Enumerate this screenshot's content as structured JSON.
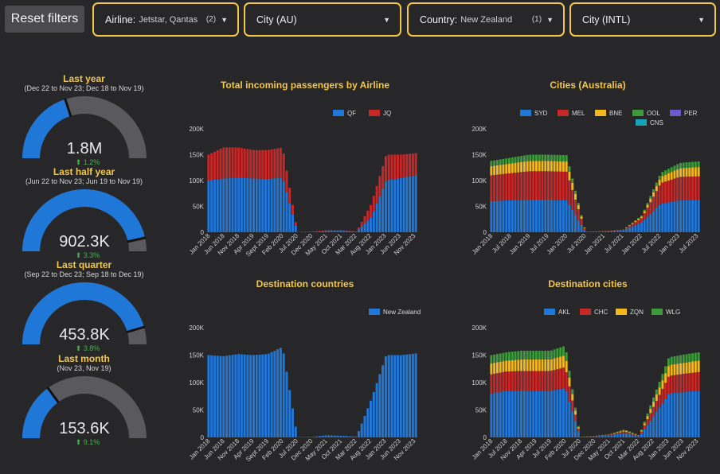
{
  "colors": {
    "bg": "#27272a",
    "accent": "#f3c74a",
    "gaugeFill": "#1f77d8",
    "gaugeTrack": "#5a5a5e",
    "up": "#4caf50"
  },
  "filters": {
    "reset_label": "Reset filters",
    "airline": {
      "label": "Airline:",
      "value": "Jetstar, Qantas",
      "count": "(2)",
      "icon": "caret-down-icon"
    },
    "city_au": {
      "label": "City (AU)",
      "icon": "caret-down-icon"
    },
    "country": {
      "label": "Country:",
      "value": "New Zealand",
      "count": "(1)",
      "icon": "caret-down-icon"
    },
    "city_intl": {
      "label": "City (INTL)",
      "icon": "caret-down-icon"
    }
  },
  "gauges": [
    {
      "title": "Last year",
      "subtitle": "(Dec 22 to Nov 23; Dec 18 to Nov 19)",
      "value": "1.8M",
      "change": "1.2%",
      "fill": 0.4,
      "marker": 0.4
    },
    {
      "title": "Last half year",
      "subtitle": "(Jun 22 to Nov 23; Jun 19 to Nov 19)",
      "value": "902.3K",
      "change": "3.3%",
      "fill": 0.93,
      "marker": 0.93
    },
    {
      "title": "Last quarter",
      "subtitle": "(Sep 22 to Dec 23; Sep 18 to Dec 19)",
      "value": "453.8K",
      "change": "3.8%",
      "fill": 0.91,
      "marker": 0.91
    },
    {
      "title": "Last month",
      "subtitle": "(Nov 23, Nov 19)",
      "value": "153.6K",
      "change": "9.1%",
      "fill": 0.3,
      "marker": 0.3
    }
  ],
  "chart_data": [
    {
      "type": "bar",
      "stacked": true,
      "title": "Total incoming passengers by Airline",
      "x": [
        "Jan 2018",
        "Jun 2018",
        "Nov 2018",
        "Apr 2019",
        "Sept 2019",
        "Feb 2020",
        "Jul 2020",
        "Dec 2020",
        "May 2021",
        "Oct 2021",
        "Mar 2022",
        "Aug 2022",
        "Jan 2023",
        "Jun 2023",
        "Nov 2023"
      ],
      "series": [
        {
          "name": "QF",
          "color": "#1f77d8",
          "values": [
            100000,
            104000,
            106000,
            104000,
            103000,
            106000,
            500,
            800,
            2500,
            3000,
            1000,
            30000,
            100000,
            105000,
            110000
          ]
        },
        {
          "name": "JQ",
          "color": "#c62828",
          "values": [
            50000,
            60000,
            58000,
            55000,
            56000,
            58000,
            200,
            300,
            1500,
            1000,
            500,
            25000,
            50000,
            45000,
            43000
          ]
        }
      ],
      "ylim": [
        0,
        200000
      ],
      "yticks": [
        "0",
        "50K",
        "100K",
        "150K",
        "200K"
      ],
      "legend": "top-right"
    },
    {
      "type": "bar",
      "stacked": true,
      "title": "Cities (Australia)",
      "x": [
        "Jan 2018",
        "Jul 2018",
        "Jan 2019",
        "Jul 2019",
        "Jan 2020",
        "Jul 2020",
        "Jan 2021",
        "Jul 2021",
        "Jan 2022",
        "Jul 2022",
        "Jan 2023",
        "Jul 2023"
      ],
      "series": [
        {
          "name": "SYD",
          "color": "#1f77d8",
          "values": [
            60000,
            62000,
            63000,
            63000,
            62000,
            500,
            1500,
            3000,
            20000,
            55000,
            62000,
            63000
          ]
        },
        {
          "name": "MEL",
          "color": "#c62828",
          "values": [
            50000,
            52000,
            55000,
            55000,
            55000,
            300,
            500,
            1000,
            8000,
            40000,
            45000,
            45000
          ]
        },
        {
          "name": "BNE",
          "color": "#f3b81c",
          "values": [
            18000,
            19000,
            20000,
            20000,
            20000,
            100,
            200,
            500,
            3000,
            12000,
            17000,
            18000
          ]
        },
        {
          "name": "OOL",
          "color": "#3c9a3c",
          "values": [
            10000,
            11000,
            12000,
            12000,
            12000,
            100,
            100,
            300,
            2000,
            8000,
            10000,
            11000
          ]
        },
        {
          "name": "PER",
          "color": "#6a5acd",
          "values": [
            0,
            0,
            0,
            0,
            0,
            0,
            0,
            0,
            0,
            0,
            0,
            0
          ]
        },
        {
          "name": "CNS",
          "color": "#17a2b8",
          "values": [
            0,
            0,
            0,
            0,
            0,
            0,
            0,
            0,
            0,
            0,
            0,
            0
          ]
        }
      ],
      "ylim": [
        0,
        200000
      ],
      "yticks": [
        "0",
        "50K",
        "100K",
        "150K",
        "200K"
      ],
      "legend": "top"
    },
    {
      "type": "bar",
      "title": "Destination countries",
      "x": [
        "Jan 2018",
        "Jun 2018",
        "Nov 2018",
        "Apr 2019",
        "Sept 2019",
        "Feb 2020",
        "Jul 2020",
        "Dec 2020",
        "May 2021",
        "Oct 2021",
        "Mar 2022",
        "Aug 2022",
        "Jan 2023",
        "Jun 2023",
        "Nov 2023"
      ],
      "series": [
        {
          "name": "New Zealand",
          "color": "#1f77d8",
          "values": [
            150000,
            148000,
            152000,
            150000,
            152000,
            165000,
            500,
            1000,
            4000,
            3000,
            1500,
            70000,
            150000,
            150000,
            153000
          ]
        }
      ],
      "ylim": [
        0,
        200000
      ],
      "yticks": [
        "0",
        "50K",
        "100K",
        "150K",
        "200K"
      ],
      "legend": "top-right"
    },
    {
      "type": "bar",
      "stacked": true,
      "title": "Destination cities",
      "x": [
        "Jan 2018",
        "Jul 2018",
        "Nov 2018",
        "Apr 2019",
        "Jul 2019",
        "Feb 2020",
        "Jul 2020",
        "Dec 2020",
        "May 2021",
        "Oct 2021",
        "Mar 2022",
        "Aug 2022",
        "Jan 2023",
        "Jun 2023",
        "Nov 2023"
      ],
      "series": [
        {
          "name": "AKL",
          "color": "#1f77d8",
          "values": [
            80000,
            85000,
            85000,
            85000,
            85000,
            90000,
            1000,
            2000,
            4000,
            8000,
            2000,
            40000,
            80000,
            83000,
            85000
          ]
        },
        {
          "name": "CHC",
          "color": "#c62828",
          "values": [
            35000,
            35000,
            36000,
            36000,
            36000,
            38000,
            200,
            500,
            1000,
            3000,
            800,
            18000,
            32000,
            33000,
            34000
          ]
        },
        {
          "name": "ZQN",
          "color": "#f3b81c",
          "values": [
            20000,
            20000,
            21000,
            21000,
            21000,
            22000,
            100,
            200,
            500,
            2000,
            500,
            10000,
            20000,
            20000,
            21000
          ]
        },
        {
          "name": "WLG",
          "color": "#3c9a3c",
          "values": [
            15000,
            15000,
            16000,
            16000,
            16000,
            17000,
            100,
            200,
            500,
            1500,
            500,
            8000,
            14000,
            15000,
            15000
          ]
        }
      ],
      "ylim": [
        0,
        200000
      ],
      "yticks": [
        "0",
        "50K",
        "100K",
        "150K",
        "200K"
      ],
      "legend": "top-right"
    }
  ]
}
